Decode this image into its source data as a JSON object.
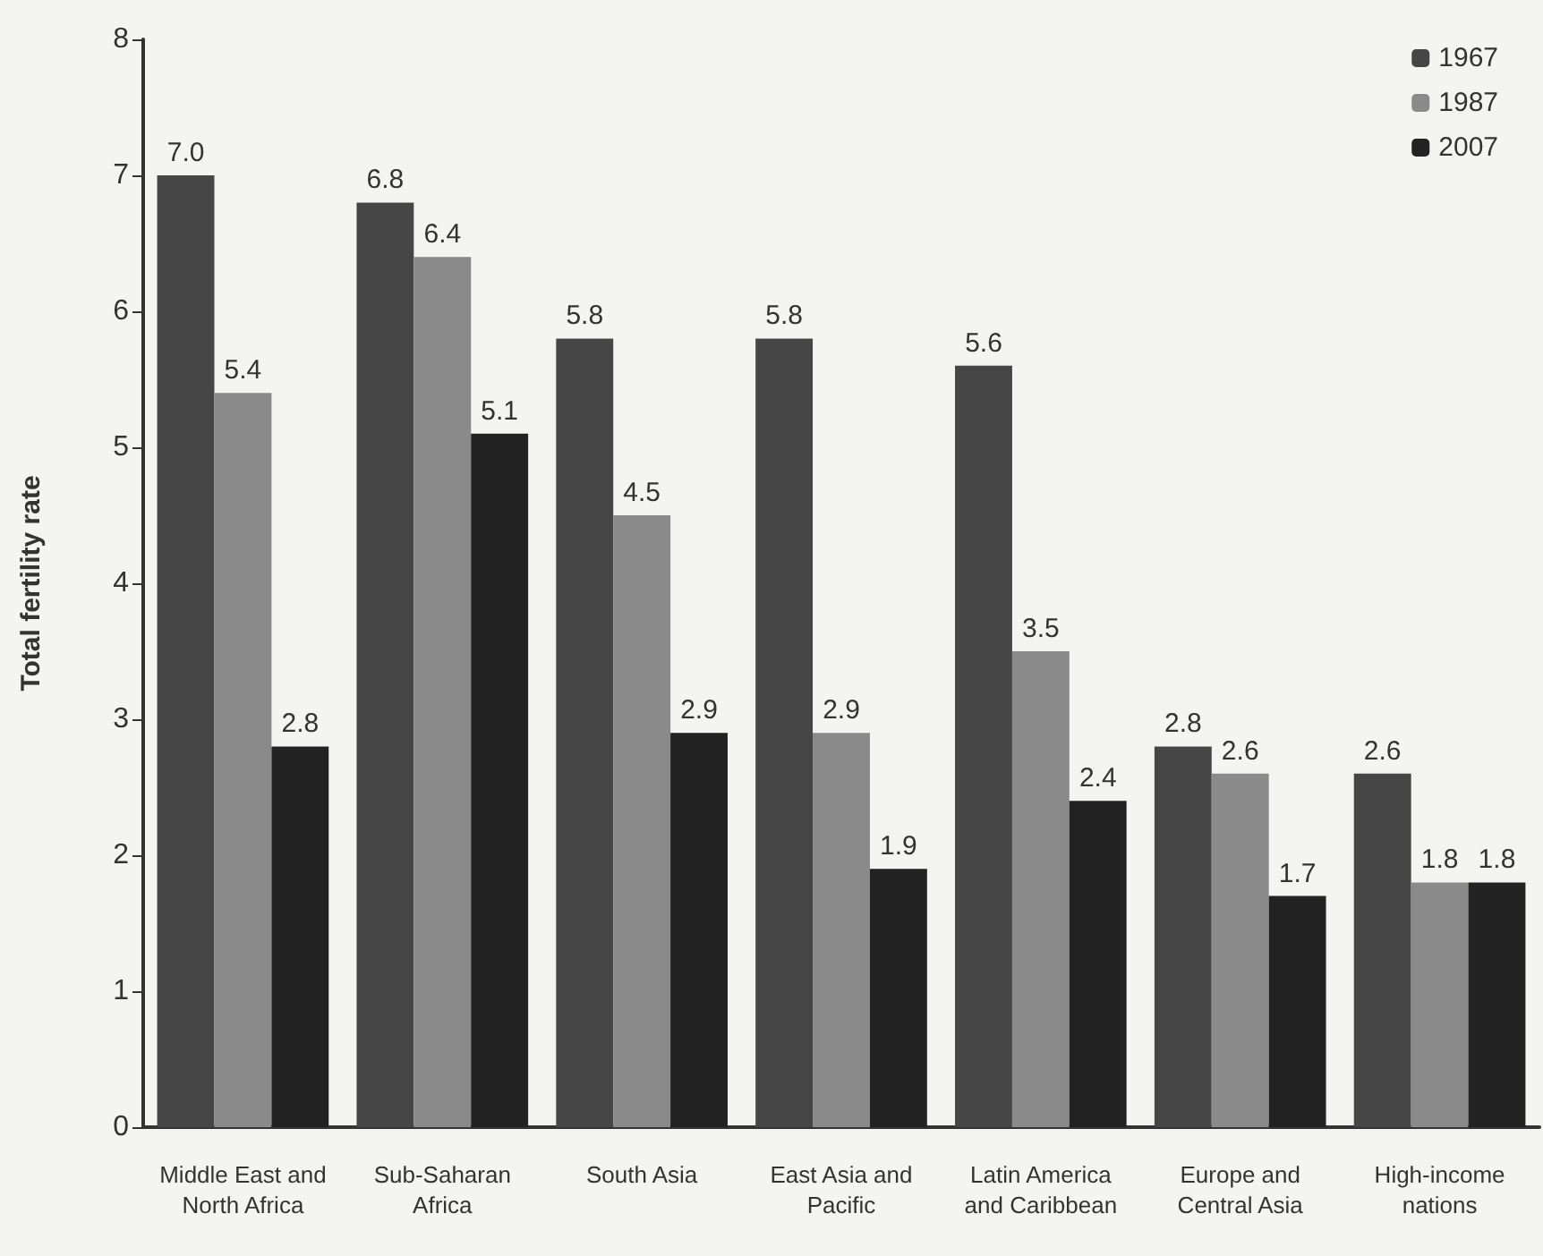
{
  "chart_data": {
    "type": "bar",
    "ylabel": "Total fertility rate",
    "categories": [
      "Middle East and\nNorth Africa",
      "Sub-Saharan\nAfrica",
      "South Asia",
      "East Asia and\nPacific",
      "Latin America\nand Caribbean",
      "Europe and\nCentral Asia",
      "High-income\nnations"
    ],
    "series": [
      {
        "name": "1967",
        "color": "#464646",
        "values": [
          7.0,
          6.8,
          5.8,
          5.8,
          5.6,
          2.8,
          2.6
        ],
        "value_labels": [
          "7.0",
          "6.8",
          "5.8",
          "5.8",
          "5.6",
          "2.8",
          "2.6"
        ]
      },
      {
        "name": "1987",
        "color": "#8a8a8a",
        "values": [
          5.4,
          6.4,
          4.5,
          2.9,
          3.5,
          2.6,
          1.8
        ],
        "value_labels": [
          "5.4",
          "6.4",
          "4.5",
          "2.9",
          "3.5",
          "2.6",
          "1.8"
        ]
      },
      {
        "name": "2007",
        "color": "#222222",
        "values": [
          2.8,
          5.1,
          2.9,
          1.9,
          2.4,
          1.7,
          1.8
        ],
        "value_labels": [
          "2.8",
          "5.1",
          "2.9",
          "1.9",
          "2.4",
          "1.7",
          "1.8"
        ]
      }
    ],
    "ylim": [
      0,
      8
    ],
    "yticks": [
      0,
      1,
      2,
      3,
      4,
      5,
      6,
      7,
      8
    ],
    "grid": false,
    "legend": "top right"
  }
}
